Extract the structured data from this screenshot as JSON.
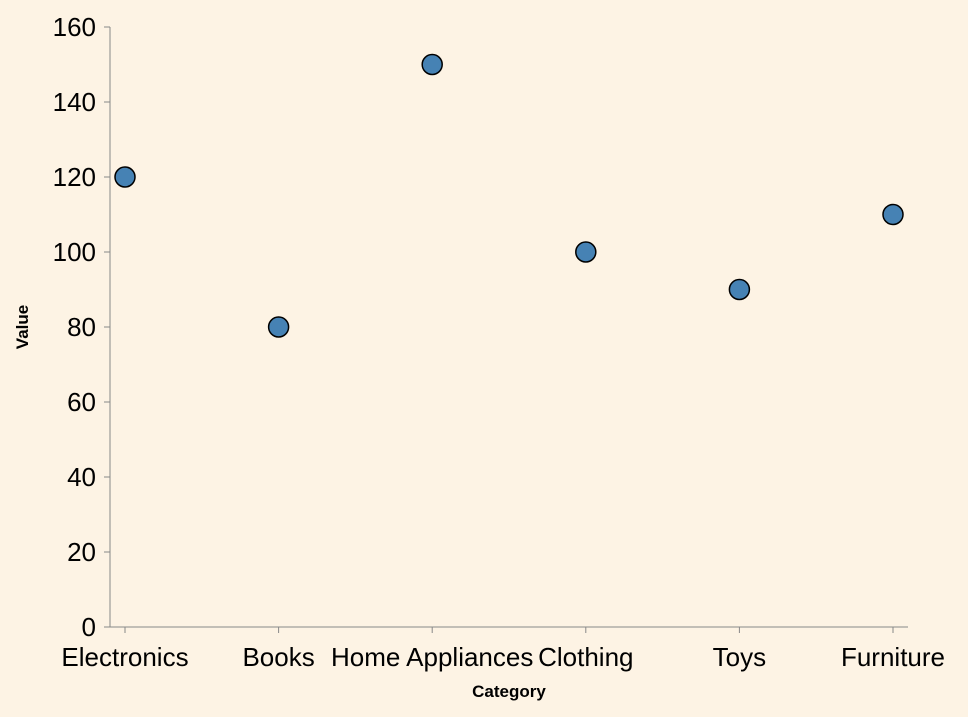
{
  "colors": {
    "background": "#fdf3e4",
    "axis": "#888888",
    "point_fill": "#4682b4",
    "point_stroke": "#000000"
  },
  "chart_data": {
    "type": "scatter",
    "categories": [
      "Electronics",
      "Books",
      "Home Appliances",
      "Clothing",
      "Toys",
      "Furniture"
    ],
    "values": [
      120,
      80,
      150,
      100,
      90,
      110
    ],
    "xlabel": "Category",
    "ylabel": "Value",
    "ylim": [
      0,
      160
    ],
    "yticks": [
      0,
      20,
      40,
      60,
      80,
      100,
      120,
      140,
      160
    ],
    "grid": false,
    "legend": "none"
  }
}
